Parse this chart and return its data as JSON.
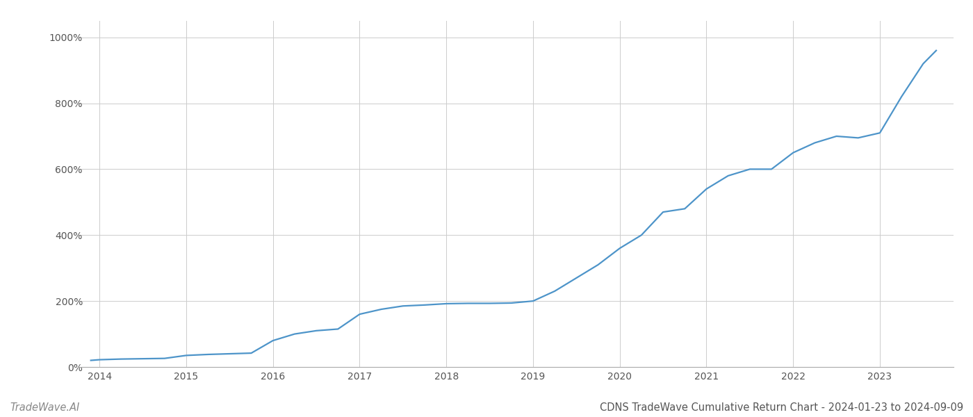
{
  "title": "CDNS TradeWave Cumulative Return Chart - 2024-01-23 to 2024-09-09",
  "watermark": "TradeWave.AI",
  "line_color": "#4d94c9",
  "background_color": "#ffffff",
  "grid_color": "#cccccc",
  "years": [
    2014,
    2015,
    2016,
    2017,
    2018,
    2019,
    2020,
    2021,
    2022,
    2023
  ],
  "x_values": [
    2013.9,
    2014.0,
    2014.25,
    2014.5,
    2014.75,
    2015.0,
    2015.25,
    2015.5,
    2015.75,
    2016.0,
    2016.25,
    2016.5,
    2016.75,
    2017.0,
    2017.25,
    2017.5,
    2017.75,
    2018.0,
    2018.25,
    2018.5,
    2018.75,
    2019.0,
    2019.25,
    2019.5,
    2019.75,
    2020.0,
    2020.25,
    2020.5,
    2020.75,
    2021.0,
    2021.25,
    2021.5,
    2021.75,
    2022.0,
    2022.25,
    2022.5,
    2022.75,
    2023.0,
    2023.25,
    2023.5,
    2023.65
  ],
  "y_values": [
    20,
    22,
    24,
    25,
    26,
    35,
    38,
    40,
    42,
    80,
    100,
    110,
    115,
    160,
    175,
    185,
    188,
    192,
    193,
    193,
    194,
    200,
    230,
    270,
    310,
    360,
    400,
    470,
    480,
    540,
    580,
    600,
    600,
    650,
    680,
    700,
    695,
    710,
    820,
    920,
    960
  ],
  "ylim": [
    0,
    1050
  ],
  "yticks": [
    0,
    200,
    400,
    600,
    800,
    1000
  ],
  "xlim": [
    2013.75,
    2023.85
  ],
  "title_fontsize": 10.5,
  "watermark_fontsize": 10.5,
  "axis_fontsize": 10,
  "line_width": 1.6
}
